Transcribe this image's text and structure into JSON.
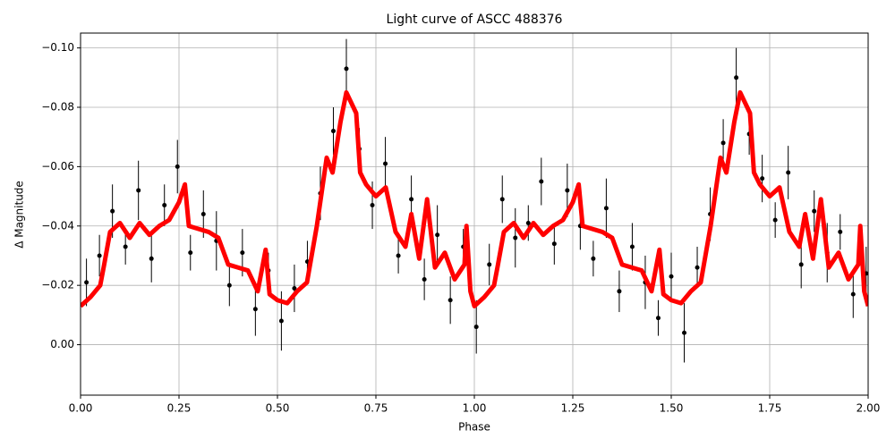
{
  "chart_data": {
    "type": "scatter",
    "title": "Light curve of ASCC 488376",
    "x_label": "Phase",
    "y_label": "Δ Magnitude",
    "xlim": [
      0,
      2
    ],
    "ylim": [
      -0.105,
      0.017
    ],
    "y_inverted": true,
    "grid": true,
    "xticks": [
      {
        "value": 0,
        "label": "0.00"
      },
      {
        "value": 0.25,
        "label": "0.25"
      },
      {
        "value": 0.5,
        "label": "0.50"
      },
      {
        "value": 0.75,
        "label": "0.75"
      },
      {
        "value": 1,
        "label": "1.00"
      },
      {
        "value": 1.25,
        "label": "1.25"
      },
      {
        "value": 1.5,
        "label": "1.50"
      },
      {
        "value": 1.75,
        "label": "1.75"
      },
      {
        "value": 2,
        "label": "2.00"
      }
    ],
    "yticks": [
      {
        "value": -0.1,
        "label": "−0.10"
      },
      {
        "value": -0.08,
        "label": "−0.08"
      },
      {
        "value": -0.06,
        "label": "−0.06"
      },
      {
        "value": -0.04,
        "label": "−0.04"
      },
      {
        "value": -0.02,
        "label": "−0.02"
      },
      {
        "value": 0,
        "label": "0.00"
      }
    ],
    "series": [
      {
        "mode": "markers",
        "color": "#000000",
        "x": [
          0.015,
          0.048,
          0.081,
          0.114,
          0.147,
          0.18,
          0.213,
          0.246,
          0.279,
          0.312,
          0.345,
          0.378,
          0.411,
          0.444,
          0.477,
          0.51,
          0.543,
          0.576,
          0.609,
          0.642,
          0.675,
          0.708,
          0.741,
          0.774,
          0.807,
          0.84,
          0.873,
          0.906,
          0.939,
          0.972,
          1.005,
          1.038,
          1.071,
          1.104,
          1.137,
          1.17,
          1.203,
          1.236,
          1.269,
          1.302,
          1.335,
          1.368,
          1.401,
          1.434,
          1.467,
          1.5,
          1.533,
          1.566,
          1.599,
          1.632,
          1.665,
          1.698,
          1.731,
          1.764,
          1.797,
          1.83,
          1.863,
          1.896,
          1.929,
          1.962,
          1.995
        ],
        "values": [
          -0.021,
          -0.03,
          -0.045,
          -0.033,
          -0.052,
          -0.029,
          -0.047,
          -0.06,
          -0.031,
          -0.044,
          -0.035,
          -0.02,
          -0.031,
          -0.012,
          -0.025,
          -0.008,
          -0.019,
          -0.028,
          -0.051,
          -0.072,
          -0.093,
          -0.066,
          -0.047,
          -0.061,
          -0.03,
          -0.049,
          -0.022,
          -0.037,
          -0.015,
          -0.033,
          -0.006,
          -0.027,
          -0.049,
          -0.036,
          -0.041,
          -0.055,
          -0.034,
          -0.052,
          -0.04,
          -0.029,
          -0.046,
          -0.018,
          -0.033,
          -0.021,
          -0.009,
          -0.023,
          -0.004,
          -0.026,
          -0.044,
          -0.068,
          -0.09,
          -0.071,
          -0.056,
          -0.042,
          -0.058,
          -0.027,
          -0.045,
          -0.031,
          -0.038,
          -0.017,
          -0.024
        ],
        "yerr": [
          0.008,
          0.007,
          0.009,
          0.006,
          0.01,
          0.008,
          0.007,
          0.009,
          0.006,
          0.008,
          0.01,
          0.007,
          0.008,
          0.009,
          0.006,
          0.01,
          0.008,
          0.007,
          0.009,
          0.008,
          0.01,
          0.007,
          0.008,
          0.009,
          0.006,
          0.008,
          0.007,
          0.01,
          0.008,
          0.006,
          0.009,
          0.007,
          0.008,
          0.01,
          0.006,
          0.008,
          0.007,
          0.009,
          0.008,
          0.006,
          0.01,
          0.007,
          0.008,
          0.009,
          0.006,
          0.008,
          0.01,
          0.007,
          0.009,
          0.008,
          0.01,
          0.007,
          0.008,
          0.006,
          0.009,
          0.008,
          0.007,
          0.01,
          0.006,
          0.008,
          0.009
        ]
      },
      {
        "mode": "line",
        "color": "#ff0000",
        "x": [
          0,
          0.025,
          0.05,
          0.06,
          0.075,
          0.1,
          0.125,
          0.15,
          0.175,
          0.2,
          0.225,
          0.25,
          0.265,
          0.275,
          0.3,
          0.325,
          0.35,
          0.375,
          0.4,
          0.425,
          0.45,
          0.47,
          0.48,
          0.5,
          0.525,
          0.55,
          0.575,
          0.6,
          0.625,
          0.64,
          0.66,
          0.675,
          0.7,
          0.71,
          0.725,
          0.75,
          0.775,
          0.8,
          0.825,
          0.84,
          0.86,
          0.88,
          0.9,
          0.925,
          0.95,
          0.975,
          0.98,
          0.99,
          1,
          1.025,
          1.05,
          1.06,
          1.075,
          1.1,
          1.125,
          1.15,
          1.175,
          1.2,
          1.225,
          1.25,
          1.265,
          1.275,
          1.3,
          1.325,
          1.35,
          1.375,
          1.4,
          1.425,
          1.45,
          1.47,
          1.48,
          1.5,
          1.525,
          1.55,
          1.575,
          1.6,
          1.625,
          1.64,
          1.66,
          1.675,
          1.7,
          1.71,
          1.725,
          1.75,
          1.775,
          1.8,
          1.825,
          1.84,
          1.86,
          1.88,
          1.9,
          1.925,
          1.95,
          1.975,
          1.98,
          1.99,
          2
        ],
        "values": [
          -0.013,
          -0.016,
          -0.02,
          -0.027,
          -0.038,
          -0.041,
          -0.036,
          -0.041,
          -0.037,
          -0.04,
          -0.042,
          -0.048,
          -0.054,
          -0.04,
          -0.039,
          -0.038,
          -0.036,
          -0.027,
          -0.026,
          -0.025,
          -0.018,
          -0.032,
          -0.017,
          -0.015,
          -0.014,
          -0.018,
          -0.021,
          -0.04,
          -0.063,
          -0.058,
          -0.075,
          -0.085,
          -0.078,
          -0.058,
          -0.054,
          -0.05,
          -0.053,
          -0.038,
          -0.033,
          -0.044,
          -0.029,
          -0.049,
          -0.026,
          -0.031,
          -0.022,
          -0.027,
          -0.04,
          -0.018,
          -0.013,
          -0.016,
          -0.02,
          -0.027,
          -0.038,
          -0.041,
          -0.036,
          -0.041,
          -0.037,
          -0.04,
          -0.042,
          -0.048,
          -0.054,
          -0.04,
          -0.039,
          -0.038,
          -0.036,
          -0.027,
          -0.026,
          -0.025,
          -0.018,
          -0.032,
          -0.017,
          -0.015,
          -0.014,
          -0.018,
          -0.021,
          -0.04,
          -0.063,
          -0.058,
          -0.075,
          -0.085,
          -0.078,
          -0.058,
          -0.054,
          -0.05,
          -0.053,
          -0.038,
          -0.033,
          -0.044,
          -0.029,
          -0.049,
          -0.026,
          -0.031,
          -0.022,
          -0.027,
          -0.04,
          -0.018,
          -0.013
        ]
      }
    ]
  }
}
